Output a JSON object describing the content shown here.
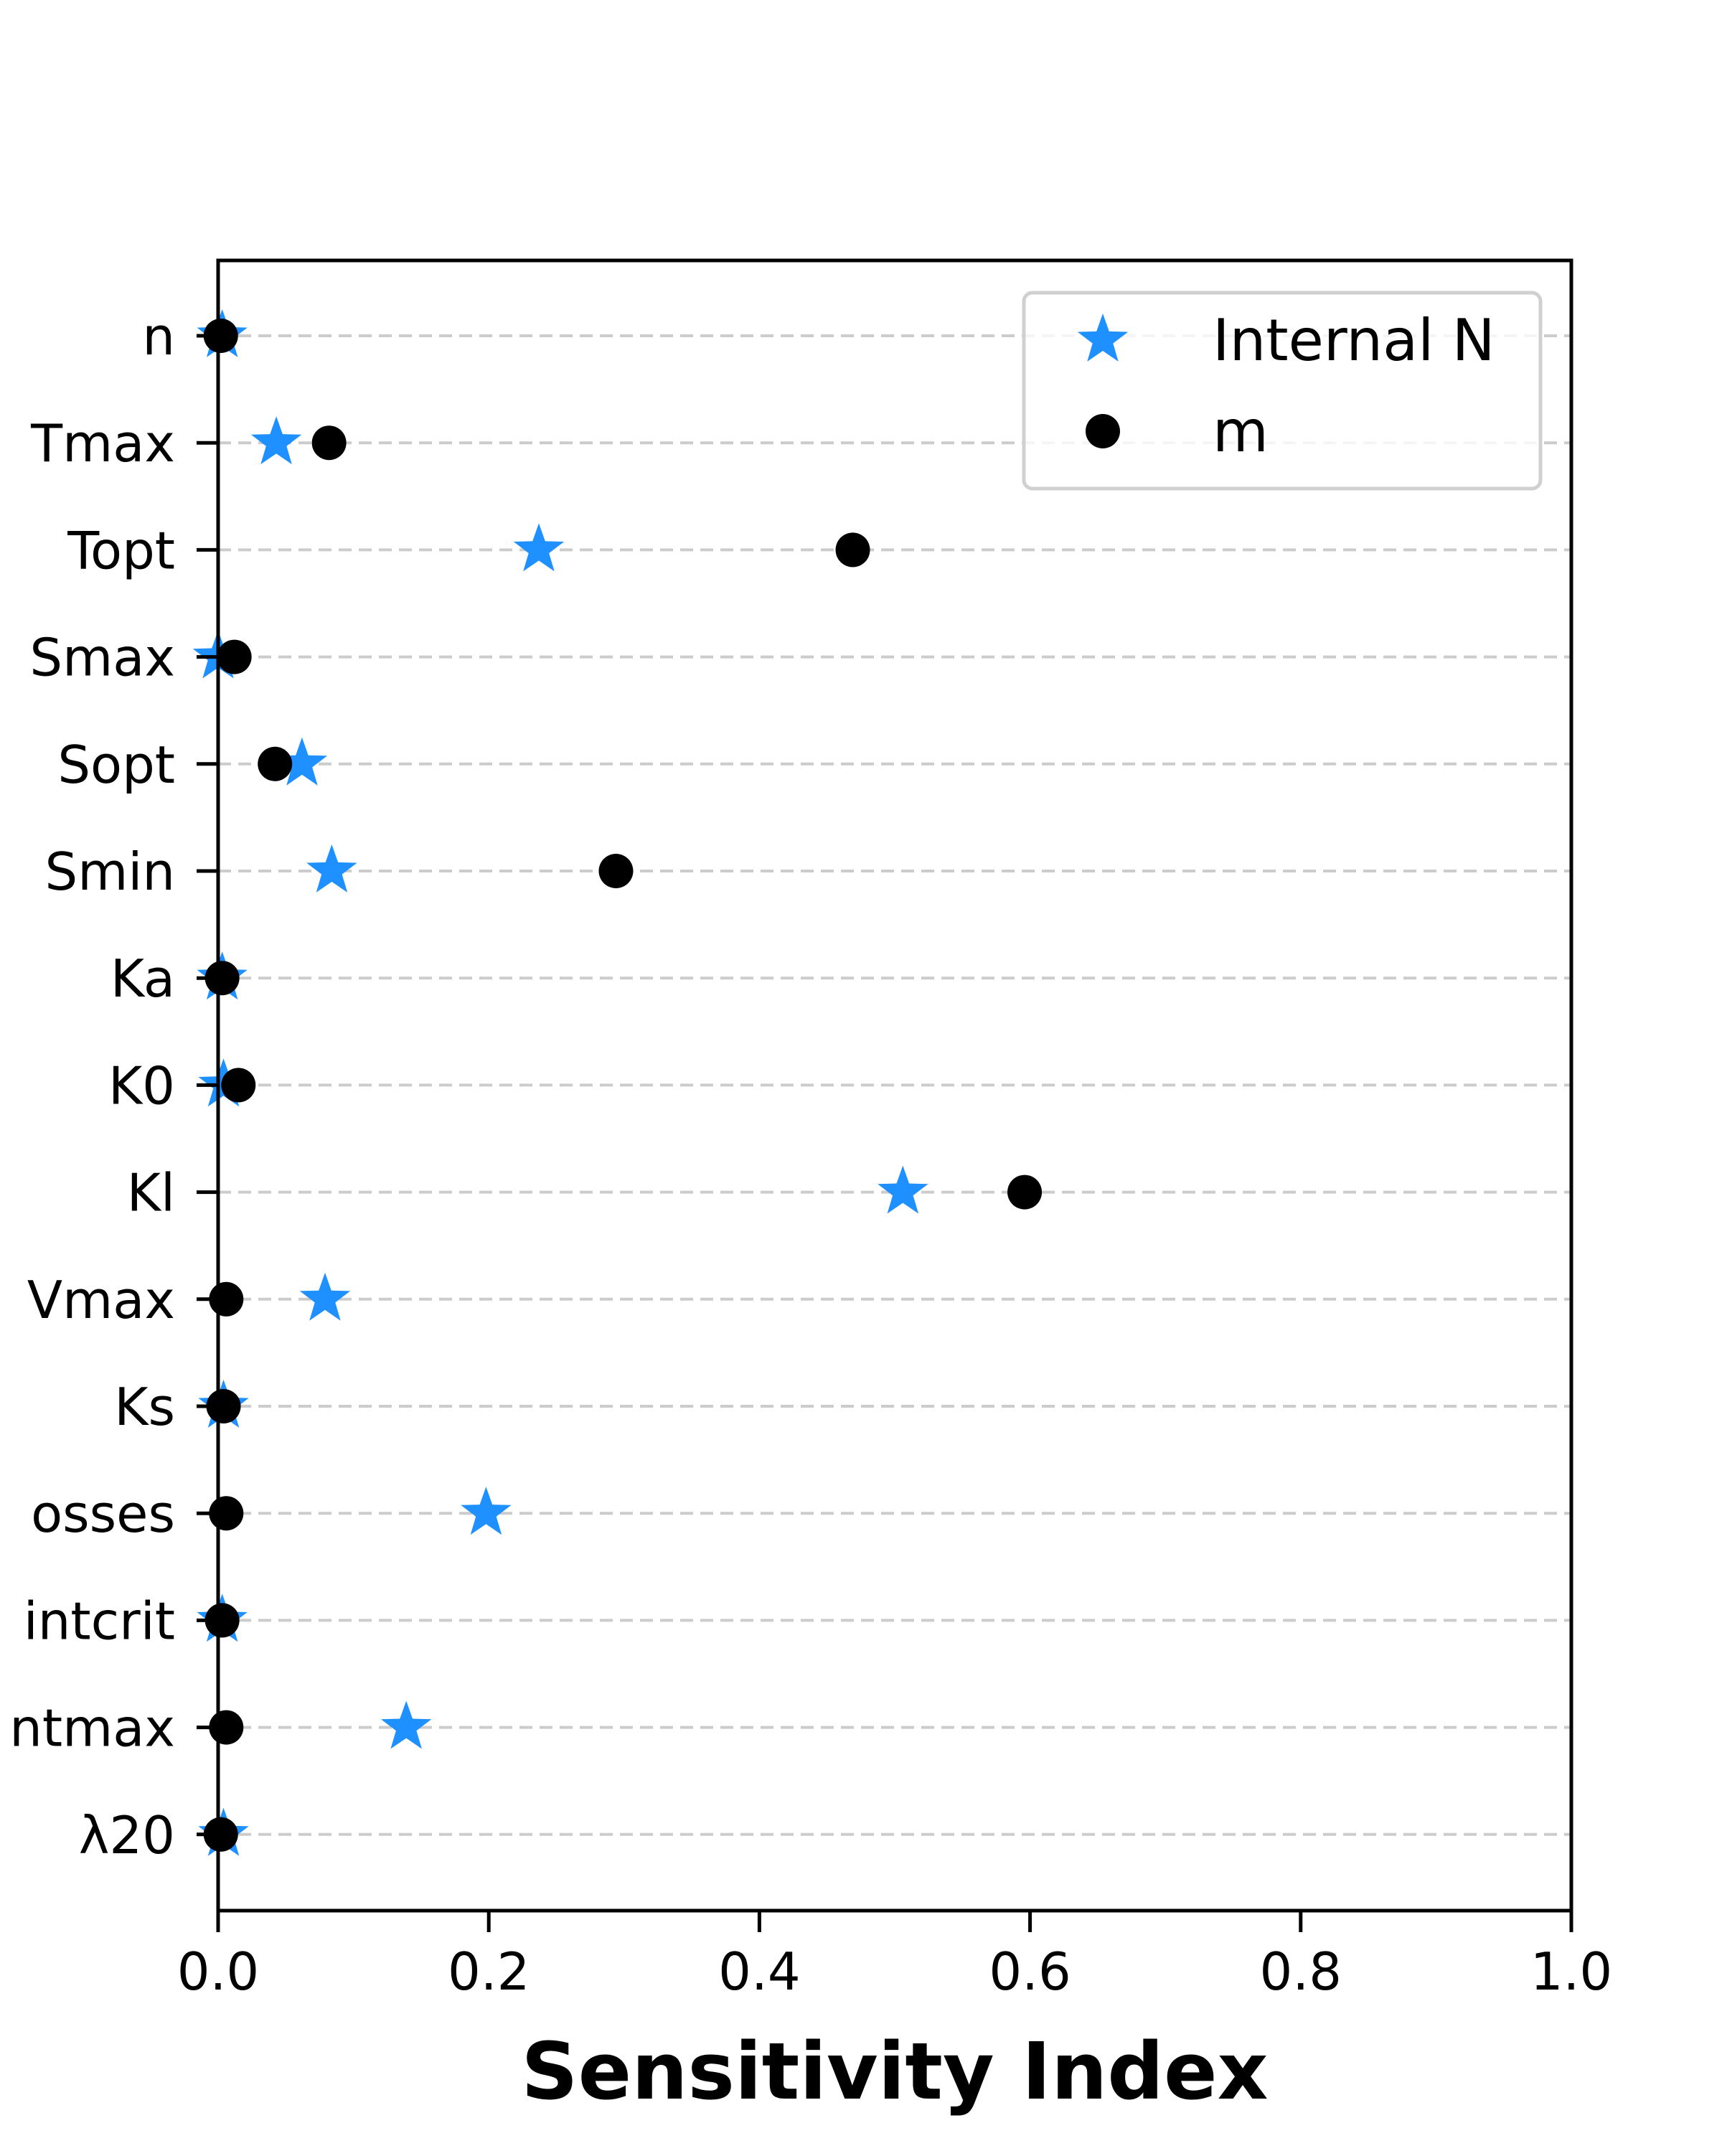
{
  "chart_data": {
    "type": "scatter",
    "orientation": "horizontal",
    "title": "",
    "xlabel": "Sensitivity Index",
    "ylabel": "",
    "xlim": [
      0.0,
      1.0
    ],
    "xticks": [
      "0.0",
      "0.2",
      "0.4",
      "0.6",
      "0.8",
      "1.0"
    ],
    "xtick_values": [
      0.0,
      0.2,
      0.4,
      0.6,
      0.8,
      1.0
    ],
    "categories": [
      "n",
      "Tmax",
      "Topt",
      "Smax",
      "Sopt",
      "Smin",
      "Ka",
      "K0",
      "Kl",
      "Vmax",
      "Ks",
      "osses",
      "intcrit",
      "ntmax",
      "λ20"
    ],
    "grid": {
      "y": true,
      "x": false,
      "style": "dashed"
    },
    "legend": {
      "position": "top-right"
    },
    "series": [
      {
        "name": "Internal N",
        "marker": "star",
        "color": "#1e90ff",
        "values": [
          0.003,
          0.043,
          0.237,
          0.0,
          0.062,
          0.084,
          0.003,
          0.004,
          0.506,
          0.079,
          0.004,
          0.198,
          0.003,
          0.139,
          0.004
        ]
      },
      {
        "name": "m",
        "marker": "circle",
        "color": "#000000",
        "values": [
          0.002,
          0.082,
          0.469,
          0.012,
          0.042,
          0.294,
          0.003,
          0.015,
          0.596,
          0.006,
          0.004,
          0.006,
          0.003,
          0.006,
          0.002
        ]
      }
    ]
  }
}
